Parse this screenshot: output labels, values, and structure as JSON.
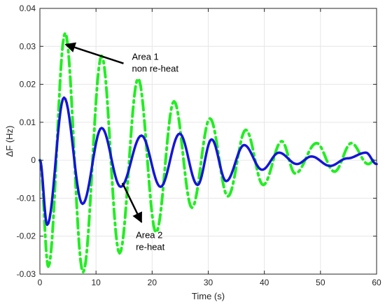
{
  "chart_data": {
    "type": "line",
    "title": "",
    "xlabel": "Time (s)",
    "ylabel": "ΔF (Hz)",
    "xlim": [
      0,
      60
    ],
    "ylim": [
      -0.03,
      0.04
    ],
    "x_ticks": [
      "0",
      "10",
      "20",
      "30",
      "40",
      "50",
      "60"
    ],
    "y_ticks": [
      "-0.03",
      "-0.02",
      "-0.01",
      "0",
      "0.01",
      "0.02",
      "0.03",
      "0.04"
    ],
    "grid": true,
    "series": [
      {
        "line_style": "dash-dot",
        "color": "#22ee22",
        "points": [
          [
            0,
            0
          ],
          [
            1.5,
            -0.028
          ],
          [
            4.5,
            0.0335
          ],
          [
            7.7,
            -0.0295
          ],
          [
            11,
            0.0275
          ],
          [
            14.2,
            -0.0245
          ],
          [
            17.5,
            0.0215
          ],
          [
            20.7,
            -0.019
          ],
          [
            23.9,
            0.0155
          ],
          [
            27.1,
            -0.0125
          ],
          [
            30.3,
            0.011
          ],
          [
            33.5,
            -0.0095
          ],
          [
            36.7,
            0.008
          ],
          [
            39.8,
            -0.0065
          ],
          [
            43.1,
            0.005
          ],
          [
            45.5,
            -0.0035
          ],
          [
            49.3,
            0.0045
          ],
          [
            52.5,
            -0.003
          ],
          [
            55.5,
            0.0045
          ],
          [
            58.5,
            -0.001
          ],
          [
            60,
            0.0005
          ]
        ]
      },
      {
        "line_style": "solid",
        "color": "#1515d8",
        "points": [
          [
            0,
            0
          ],
          [
            1.3,
            -0.017
          ],
          [
            4.3,
            0.0165
          ],
          [
            7.6,
            -0.0115
          ],
          [
            11,
            0.0085
          ],
          [
            14.4,
            -0.007
          ],
          [
            18.1,
            0.0065
          ],
          [
            21.5,
            -0.007
          ],
          [
            24.9,
            0.007
          ],
          [
            28.1,
            -0.0065
          ],
          [
            30.6,
            0.0055
          ],
          [
            33.2,
            -0.0055
          ],
          [
            36.4,
            0.004
          ],
          [
            39.6,
            -0.0025
          ],
          [
            42.6,
            0.002
          ],
          [
            45.8,
            -0.001
          ],
          [
            48.4,
            0.001
          ],
          [
            51.7,
            -0.0015
          ],
          [
            54.8,
            0.0005
          ],
          [
            58.1,
            0.002
          ],
          [
            60,
            -0.001
          ]
        ]
      }
    ],
    "annotations": [
      {
        "lines": [
          "Area 1",
          "non re-heat"
        ],
        "arrow_tip": [
          4.6,
          0.0305
        ],
        "arrow_tail": [
          14.9,
          0.0255
        ],
        "text_at": [
          16.4,
          0.0265
        ]
      },
      {
        "lines": [
          "Area 2",
          "re-heat"
        ],
        "arrow_tip": [
          18.1,
          -0.0163
        ],
        "arrow_tail": [
          14.7,
          -0.006
        ],
        "text_at": [
          17.1,
          -0.0205
        ]
      }
    ]
  }
}
